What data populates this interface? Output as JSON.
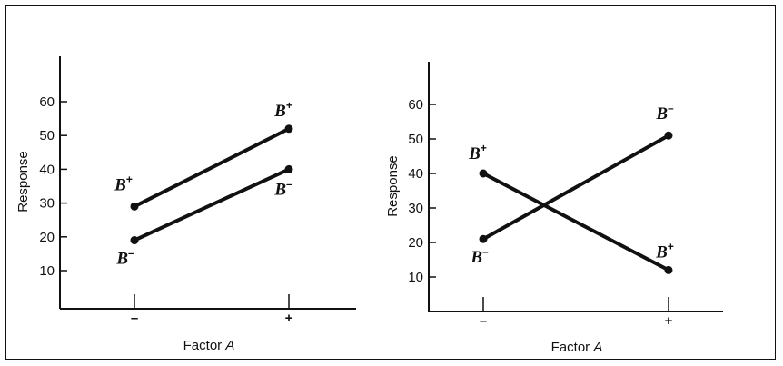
{
  "chart_data": [
    {
      "type": "line",
      "ylabel": "Response",
      "xlabel_text": "Factor ",
      "xlabel_var": "A",
      "x_ticks": [
        "–",
        "+"
      ],
      "y_ticks": [
        10,
        20,
        30,
        40,
        50,
        60
      ],
      "ylim": [
        0,
        70
      ],
      "series": [
        {
          "name": "B",
          "sign": "+",
          "values": [
            29,
            52
          ],
          "labels": [
            "start",
            "end"
          ]
        },
        {
          "name": "B",
          "sign": "–",
          "values": [
            19,
            40
          ],
          "labels": [
            "start",
            "end"
          ]
        }
      ]
    },
    {
      "type": "line",
      "ylabel": "Response",
      "xlabel_text": "Factor ",
      "xlabel_var": "A",
      "x_ticks": [
        "–",
        "+"
      ],
      "y_ticks": [
        10,
        20,
        30,
        40,
        50,
        60
      ],
      "ylim": [
        0,
        70
      ],
      "series": [
        {
          "name": "B",
          "sign": "+",
          "values": [
            40,
            12
          ]
        },
        {
          "name": "B",
          "sign": "–",
          "values": [
            21,
            51
          ]
        }
      ]
    }
  ]
}
